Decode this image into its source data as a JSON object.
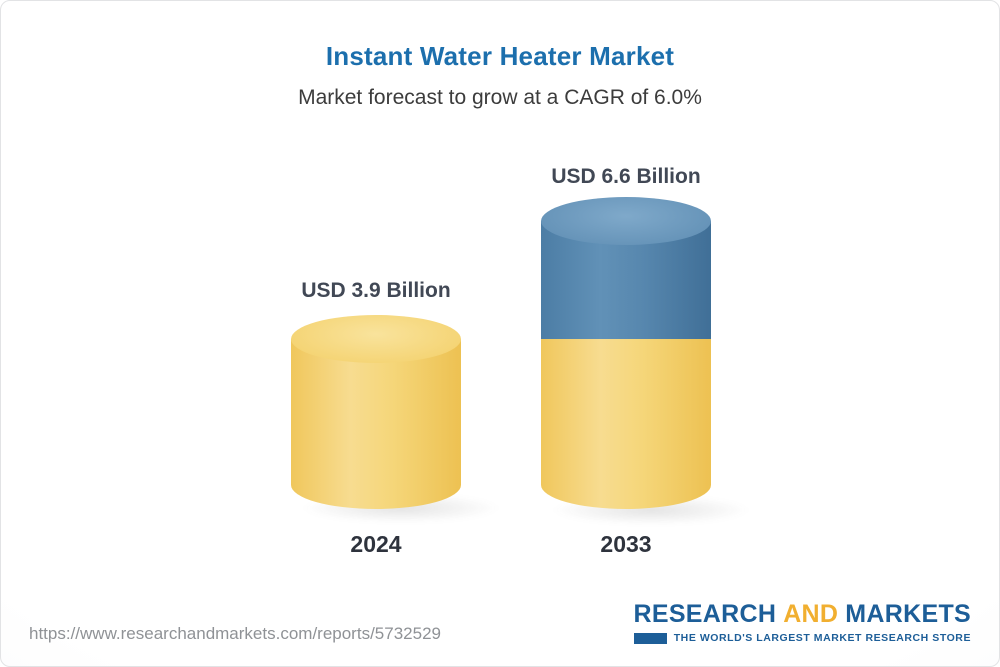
{
  "header": {
    "title": "Instant Water Heater Market",
    "subtitle": "Market forecast to grow at a CAGR of 6.0%"
  },
  "chart_data": {
    "type": "bar",
    "style": "3d-cylinder",
    "title": "Instant Water Heater Market",
    "subtitle": "Market forecast to grow at a CAGR of 6.0%",
    "unit": "USD Billion",
    "cagr": "6.0%",
    "categories": [
      "2024",
      "2033"
    ],
    "values": [
      3.9,
      6.6
    ],
    "colors": {
      "base_segment": "#F5D06E",
      "growth_segment": "#4E7FA9",
      "title_text": "#1C6FAD",
      "label_text": "#414855"
    },
    "bars": [
      {
        "year": "2024",
        "value": 3.9,
        "label": "USD 3.9 Billion",
        "color": "#F5D06E"
      },
      {
        "year": "2033",
        "value": 6.6,
        "label": "USD 6.6 Billion",
        "base_color": "#F5D06E",
        "top_color": "#4E7FA9"
      }
    ]
  },
  "footer": {
    "url": "https://www.researchandmarkets.com/reports/5732529",
    "logo": {
      "research": "RESEARCH",
      "and": "AND",
      "markets": "MARKETS",
      "tagline": "THE WORLD'S LARGEST MARKET RESEARCH STORE"
    }
  }
}
